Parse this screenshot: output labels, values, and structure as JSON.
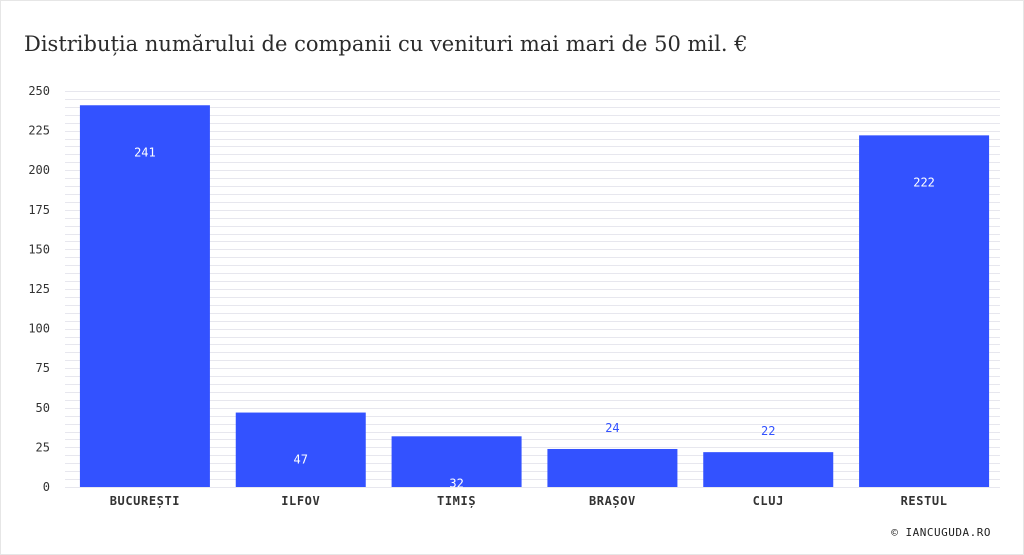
{
  "title": "Distribuția numărului de companii cu venituri mai mari de 50 mil. €",
  "credit": "© IANCUGUDA.RO",
  "colors": {
    "bar": "#3352ff",
    "label_inside": "#ffffff",
    "label_outside": "#3352ff",
    "grid": "#e7e7ee",
    "axis_text": "#333333"
  },
  "chart_data": {
    "type": "bar",
    "categories": [
      "BUCUREȘTI",
      "ILFOV",
      "TIMIȘ",
      "BRAȘOV",
      "CLUJ",
      "RESTUL"
    ],
    "values": [
      241,
      47,
      32,
      24,
      22,
      222
    ],
    "title": "Distribuția numărului de companii cu venituri mai mari de 50 mil. €",
    "xlabel": "",
    "ylabel": "",
    "ylim": [
      0,
      250
    ],
    "yticks": [
      0,
      25,
      50,
      75,
      100,
      125,
      150,
      175,
      200,
      225,
      250
    ],
    "grid": true,
    "legend": "none"
  }
}
